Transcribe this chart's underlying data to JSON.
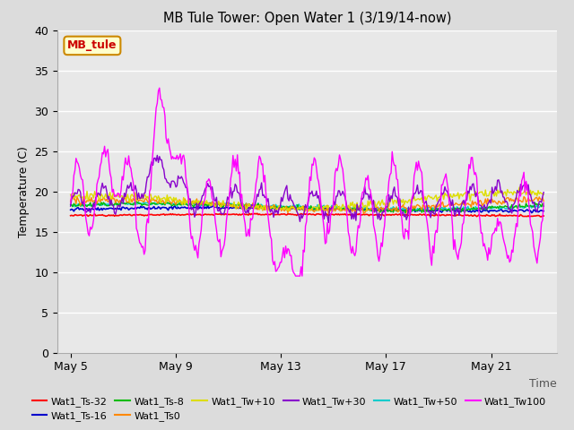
{
  "title": "MB Tule Tower: Open Water 1 (3/19/14-now)",
  "xlabel": "Time",
  "ylabel": "Temperature (C)",
  "ylim": [
    0,
    40
  ],
  "yticks": [
    0,
    5,
    10,
    15,
    20,
    25,
    30,
    35,
    40
  ],
  "x_tick_labels": [
    "May 5",
    "May 9",
    "May 13",
    "May 17",
    "May 21"
  ],
  "x_tick_positions": [
    0,
    4,
    8,
    12,
    16
  ],
  "xlim": [
    -0.5,
    18.5
  ],
  "bg_color": "#e0e0e0",
  "series_colors": {
    "Wat1_Ts-32": "#ff0000",
    "Wat1_Ts-16": "#0000cc",
    "Wat1_Ts-8": "#00bb00",
    "Wat1_Ts0": "#ff8800",
    "Wat1_Tw+10": "#dddd00",
    "Wat1_Tw+30": "#8800cc",
    "Wat1_Tw+50": "#00cccc",
    "Wat1_Tw100": "#ff00ff"
  },
  "annotation_text": "MB_tule",
  "annotation_color": "#cc0000",
  "annotation_bg": "#ffffcc",
  "annotation_border": "#cc8800"
}
